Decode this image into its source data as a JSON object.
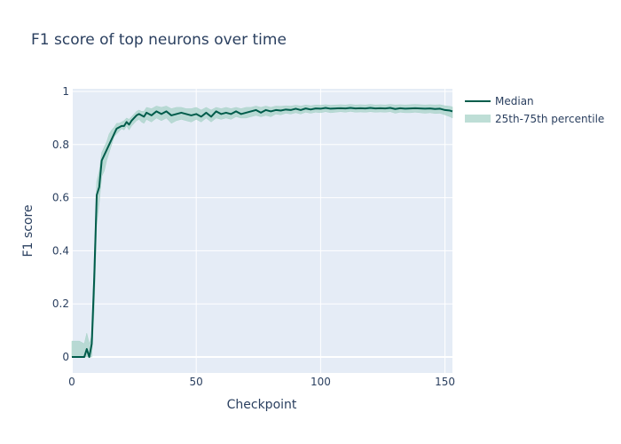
{
  "chart_data": {
    "type": "line",
    "title": "F1 score of top neurons over time",
    "xlabel": "Checkpoint",
    "ylabel": "F1 score",
    "xlim": [
      0,
      153
    ],
    "ylim": [
      -0.06,
      1.01
    ],
    "xticks": [
      0,
      50,
      100,
      150
    ],
    "yticks": [
      0,
      0.2,
      0.4,
      0.6,
      0.8,
      1
    ],
    "ytick_labels": [
      "0",
      "0.2",
      "0.4",
      "0.6",
      "0.8",
      "1"
    ],
    "legend_position": "top-right",
    "colors": {
      "median": "#005c4b",
      "band": "#a8d3c8",
      "plot_bg": "#e5ecf6",
      "grid": "#ffffff"
    },
    "series": [
      {
        "name": "Median",
        "kind": "line",
        "x": [
          0,
          1,
          2,
          3,
          4,
          5,
          6,
          7,
          8,
          9,
          10,
          11,
          12,
          13,
          14,
          15,
          16,
          17,
          18,
          19,
          20,
          21,
          22,
          23,
          24,
          25,
          26,
          27,
          28,
          29,
          30,
          32,
          34,
          36,
          38,
          40,
          42,
          44,
          46,
          48,
          50,
          52,
          54,
          56,
          58,
          60,
          62,
          64,
          66,
          68,
          70,
          72,
          74,
          76,
          78,
          80,
          82,
          84,
          86,
          88,
          90,
          92,
          94,
          96,
          98,
          100,
          102,
          104,
          106,
          108,
          110,
          112,
          114,
          116,
          118,
          120,
          122,
          124,
          126,
          128,
          130,
          132,
          134,
          136,
          138,
          140,
          142,
          144,
          146,
          148,
          150,
          152,
          153
        ],
        "y": [
          0.0,
          0.0,
          0.0,
          0.0,
          0.0,
          0.0,
          0.03,
          0.0,
          0.05,
          0.3,
          0.61,
          0.64,
          0.74,
          0.76,
          0.78,
          0.8,
          0.82,
          0.84,
          0.86,
          0.865,
          0.87,
          0.87,
          0.885,
          0.875,
          0.89,
          0.9,
          0.91,
          0.915,
          0.91,
          0.905,
          0.92,
          0.91,
          0.925,
          0.915,
          0.925,
          0.91,
          0.915,
          0.92,
          0.915,
          0.91,
          0.915,
          0.905,
          0.92,
          0.905,
          0.925,
          0.915,
          0.92,
          0.915,
          0.925,
          0.915,
          0.92,
          0.925,
          0.93,
          0.92,
          0.93,
          0.925,
          0.93,
          0.928,
          0.932,
          0.93,
          0.935,
          0.93,
          0.936,
          0.932,
          0.936,
          0.935,
          0.938,
          0.935,
          0.936,
          0.937,
          0.936,
          0.938,
          0.936,
          0.937,
          0.936,
          0.938,
          0.936,
          0.937,
          0.936,
          0.938,
          0.934,
          0.937,
          0.935,
          0.936,
          0.937,
          0.936,
          0.935,
          0.936,
          0.934,
          0.935,
          0.93,
          0.928,
          0.925
        ]
      },
      {
        "name": "25th-75th percentile",
        "kind": "band",
        "x": [
          0,
          1,
          2,
          3,
          4,
          5,
          6,
          7,
          8,
          9,
          10,
          11,
          12,
          13,
          14,
          15,
          16,
          17,
          18,
          19,
          20,
          21,
          22,
          23,
          24,
          25,
          26,
          27,
          28,
          29,
          30,
          32,
          34,
          36,
          38,
          40,
          42,
          44,
          46,
          48,
          50,
          52,
          54,
          56,
          58,
          60,
          62,
          64,
          66,
          68,
          70,
          72,
          74,
          76,
          78,
          80,
          82,
          84,
          86,
          88,
          90,
          92,
          94,
          96,
          98,
          100,
          102,
          104,
          106,
          108,
          110,
          112,
          114,
          116,
          118,
          120,
          122,
          124,
          126,
          128,
          130,
          132,
          134,
          136,
          138,
          140,
          142,
          144,
          146,
          148,
          150,
          152,
          153
        ],
        "lower": [
          0.0,
          0.0,
          0.0,
          0.0,
          0.0,
          0.0,
          0.0,
          0.0,
          0.0,
          0.18,
          0.5,
          0.58,
          0.68,
          0.7,
          0.74,
          0.77,
          0.8,
          0.83,
          0.84,
          0.85,
          0.86,
          0.855,
          0.87,
          0.855,
          0.87,
          0.88,
          0.89,
          0.895,
          0.885,
          0.88,
          0.895,
          0.885,
          0.9,
          0.89,
          0.9,
          0.88,
          0.89,
          0.895,
          0.89,
          0.885,
          0.895,
          0.885,
          0.9,
          0.885,
          0.9,
          0.895,
          0.9,
          0.895,
          0.905,
          0.9,
          0.9,
          0.905,
          0.91,
          0.905,
          0.91,
          0.905,
          0.915,
          0.912,
          0.918,
          0.915,
          0.92,
          0.915,
          0.922,
          0.918,
          0.922,
          0.92,
          0.924,
          0.92,
          0.922,
          0.924,
          0.922,
          0.925,
          0.922,
          0.923,
          0.922,
          0.924,
          0.922,
          0.923,
          0.922,
          0.924,
          0.918,
          0.922,
          0.92,
          0.92,
          0.922,
          0.92,
          0.918,
          0.92,
          0.917,
          0.918,
          0.912,
          0.905,
          0.9
        ],
        "upper": [
          0.06,
          0.06,
          0.06,
          0.06,
          0.055,
          0.05,
          0.09,
          0.05,
          0.08,
          0.38,
          0.66,
          0.7,
          0.77,
          0.79,
          0.81,
          0.84,
          0.855,
          0.865,
          0.88,
          0.88,
          0.885,
          0.89,
          0.9,
          0.895,
          0.905,
          0.915,
          0.925,
          0.93,
          0.925,
          0.925,
          0.94,
          0.935,
          0.945,
          0.94,
          0.945,
          0.935,
          0.94,
          0.94,
          0.935,
          0.935,
          0.94,
          0.93,
          0.94,
          0.93,
          0.94,
          0.935,
          0.94,
          0.935,
          0.94,
          0.935,
          0.94,
          0.94,
          0.945,
          0.94,
          0.945,
          0.94,
          0.945,
          0.944,
          0.946,
          0.945,
          0.948,
          0.945,
          0.949,
          0.946,
          0.949,
          0.948,
          0.95,
          0.948,
          0.949,
          0.95,
          0.949,
          0.951,
          0.949,
          0.95,
          0.949,
          0.951,
          0.949,
          0.95,
          0.949,
          0.951,
          0.949,
          0.95,
          0.949,
          0.95,
          0.951,
          0.95,
          0.949,
          0.95,
          0.949,
          0.95,
          0.946,
          0.944,
          0.942
        ]
      }
    ]
  }
}
